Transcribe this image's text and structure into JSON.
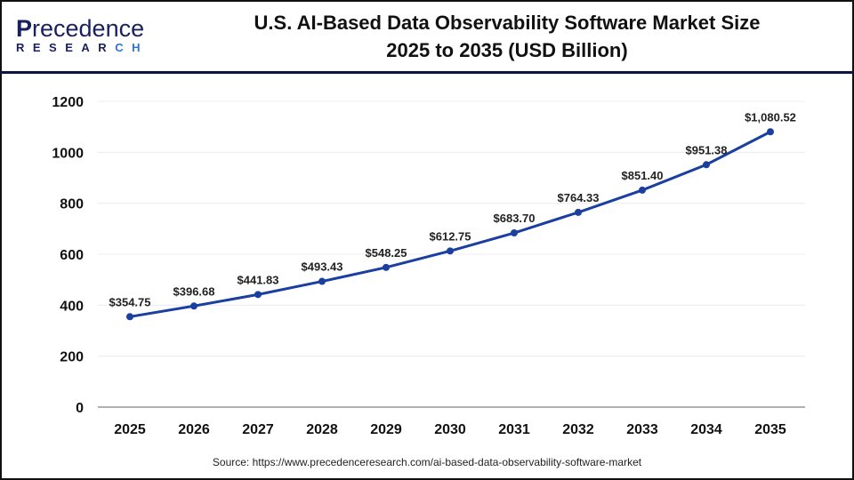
{
  "logo": {
    "line1": "Precedence",
    "line2": "RESEARCH"
  },
  "header": {
    "title_line1": "U.S. AI-Based Data Observability Software Market Size",
    "title_line2": "2025 to 2035 (USD Billion)"
  },
  "source": "Source: https://www.precedenceresearch.com/ai-based-data-observability-software-market",
  "chart_data": {
    "type": "line",
    "title": "U.S. AI-Based Data Observability Software Market Size 2025 to 2035 (USD Billion)",
    "categories": [
      "2025",
      "2026",
      "2027",
      "2028",
      "2029",
      "2030",
      "2031",
      "2032",
      "2033",
      "2034",
      "2035"
    ],
    "values": [
      354.75,
      396.68,
      441.83,
      493.43,
      548.25,
      612.75,
      683.7,
      764.33,
      851.4,
      951.38,
      1080.52
    ],
    "data_labels": [
      "$354.75",
      "$396.68",
      "$441.83",
      "$493.43",
      "$548.25",
      "$612.75",
      "$683.70",
      "$764.33",
      "$851.40",
      "$951.38",
      "$1,080.52"
    ],
    "ylim": [
      0,
      1200
    ],
    "yticks": [
      0,
      200,
      400,
      600,
      800,
      1000,
      1200
    ],
    "grid": true,
    "xlabel": "",
    "ylabel": "",
    "line_color": "#1a3fa0"
  }
}
